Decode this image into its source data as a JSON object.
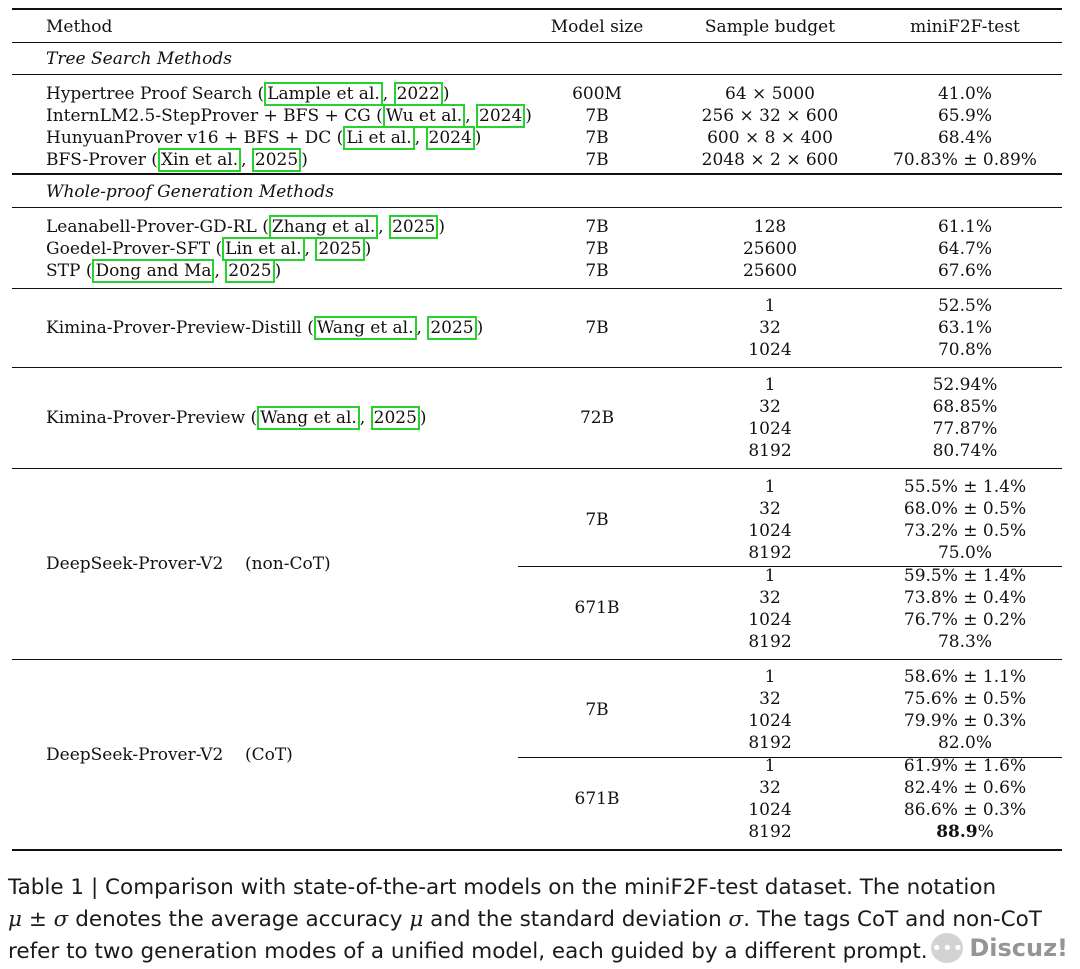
{
  "header": {
    "method": "Method",
    "model_size": "Model size",
    "sample_budget": "Sample budget",
    "metric": "miniF2F-test"
  },
  "sections": {
    "tree": "Tree Search Methods",
    "whole": "Whole-proof Generation Methods"
  },
  "rows": {
    "hypertree": {
      "pre": "Hypertree Proof Search (",
      "c1": "Lample et al.",
      "sep": ", ",
      "c2": "2022",
      "post": ")",
      "size": "600M",
      "budget": "64 × 5000",
      "score": "41.0%"
    },
    "internlm": {
      "pre": "InternLM2.5-StepProver + BFS + CG (",
      "c1": "Wu et al.",
      "sep": ", ",
      "c2": "2024",
      "post": ")",
      "size": "7B",
      "budget": "256 × 32 × 600",
      "score": "65.9%"
    },
    "hunyuan": {
      "pre": "HunyuanProver v16 + BFS + DC (",
      "c1": "Li et al.",
      "sep": ", ",
      "c2": "2024",
      "post": ")",
      "size": "7B",
      "budget": "600 × 8 × 400",
      "score": "68.4%"
    },
    "bfs": {
      "pre": "BFS-Prover (",
      "c1": "Xin et al.",
      "sep": ", ",
      "c2": "2025",
      "post": ")",
      "size": "7B",
      "budget": "2048 × 2 × 600",
      "score": "70.83% ± 0.89%"
    },
    "leanabell": {
      "pre": "Leanabell-Prover-GD-RL (",
      "c1": "Zhang et al.",
      "sep": ", ",
      "c2": "2025",
      "post": ")",
      "size": "7B",
      "budget": "128",
      "score": "61.1%"
    },
    "goedel": {
      "pre": "Goedel-Prover-SFT (",
      "c1": "Lin et al.",
      "sep": ", ",
      "c2": "2025",
      "post": ")",
      "size": "7B",
      "budget": "25600",
      "score": "64.7%"
    },
    "stp": {
      "pre": "STP (",
      "c1": "Dong and Ma",
      "sep": ", ",
      "c2": "2025",
      "post": ")",
      "size": "7B",
      "budget": "25600",
      "score": "67.6%"
    }
  },
  "kimina_distill": {
    "pre": "Kimina-Prover-Preview-Distill (",
    "c1": "Wang et al.",
    "sep": ", ",
    "c2": "2025",
    "post": ")",
    "size": "7B",
    "budgets": [
      "1",
      "32",
      "1024"
    ],
    "scores": [
      "52.5%",
      "63.1%",
      "70.8%"
    ]
  },
  "kimina": {
    "pre": "Kimina-Prover-Preview (",
    "c1": "Wang et al.",
    "sep": ", ",
    "c2": "2025",
    "post": ")",
    "size": "72B",
    "budgets": [
      "1",
      "32",
      "1024",
      "8192"
    ],
    "scores": [
      "52.94%",
      "68.85%",
      "77.87%",
      "80.74%"
    ]
  },
  "ds_noncot": {
    "name": "DeepSeek-Prover-V2    (non-CoT)",
    "size_a": "7B",
    "budgets_a": [
      "1",
      "32",
      "1024",
      "8192"
    ],
    "scores_a": [
      "55.5% ± 1.4%",
      "68.0% ± 0.5%",
      "73.2% ± 0.5%",
      "75.0%"
    ],
    "size_b": "671B",
    "budgets_b": [
      "1",
      "32",
      "1024",
      "8192"
    ],
    "scores_b": [
      "59.5% ± 1.4%",
      "73.8% ± 0.4%",
      "76.7% ± 0.2%",
      "78.3%"
    ]
  },
  "ds_cot": {
    "name": "DeepSeek-Prover-V2    (CoT)",
    "size_a": "7B",
    "budgets_a": [
      "1",
      "32",
      "1024",
      "8192"
    ],
    "scores_a": [
      "58.6% ± 1.1%",
      "75.6% ± 0.5%",
      "79.9% ± 0.3%",
      "82.0%"
    ],
    "size_b": "671B",
    "budgets_b": [
      "1",
      "32",
      "1024",
      "8192"
    ],
    "scores_b": [
      "61.9% ± 1.6%",
      "82.4% ± 0.6%",
      "86.6% ± 0.3%"
    ],
    "last_score_bold": "88.9",
    "last_score_suffix": "%"
  },
  "caption": {
    "line1": "Table 1 | Comparison with state-of-the-art models on the miniF2F-test dataset.  The notation",
    "mu": "μ",
    "pm": " ± ",
    "sigma": "σ",
    "line2_mid": " denotes the average accuracy ",
    "line2_mid2": " and the standard deviation ",
    "line2_end": ". The tags CoT and non-CoT",
    "line3": "refer to two generation modes of a unified model, each guided by a different prompt."
  },
  "watermark": {
    "text": "Discuz!"
  }
}
